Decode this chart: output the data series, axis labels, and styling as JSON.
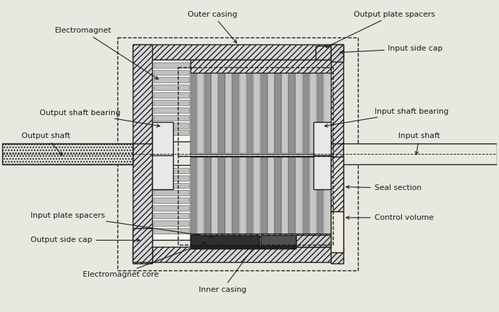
{
  "bg_color": "#f0f0e8",
  "line_color": "#1a1a1a",
  "fig_bg": "#e8e8e0",
  "labels": {
    "outer_casing": "Outer casing",
    "electromagnet": "Electromagnet",
    "output_plate_spacers": "Output plate spacers",
    "input_side_cap": "Input side cap",
    "output_shaft_bearing": "Output shaft bearing",
    "output_shaft": "Output shaft",
    "input_shaft_bearing": "Input shaft bearing",
    "input_shaft": "Input shaft",
    "input_plate_spacers": "Input plate spacers",
    "output_side_cap": "Output side cap",
    "electromagnet_core": "Electromagnet core",
    "inner_casing": "Inner casing",
    "seal_section": "Seal section",
    "control_volume": "Control volume"
  },
  "font_size": 8.0
}
